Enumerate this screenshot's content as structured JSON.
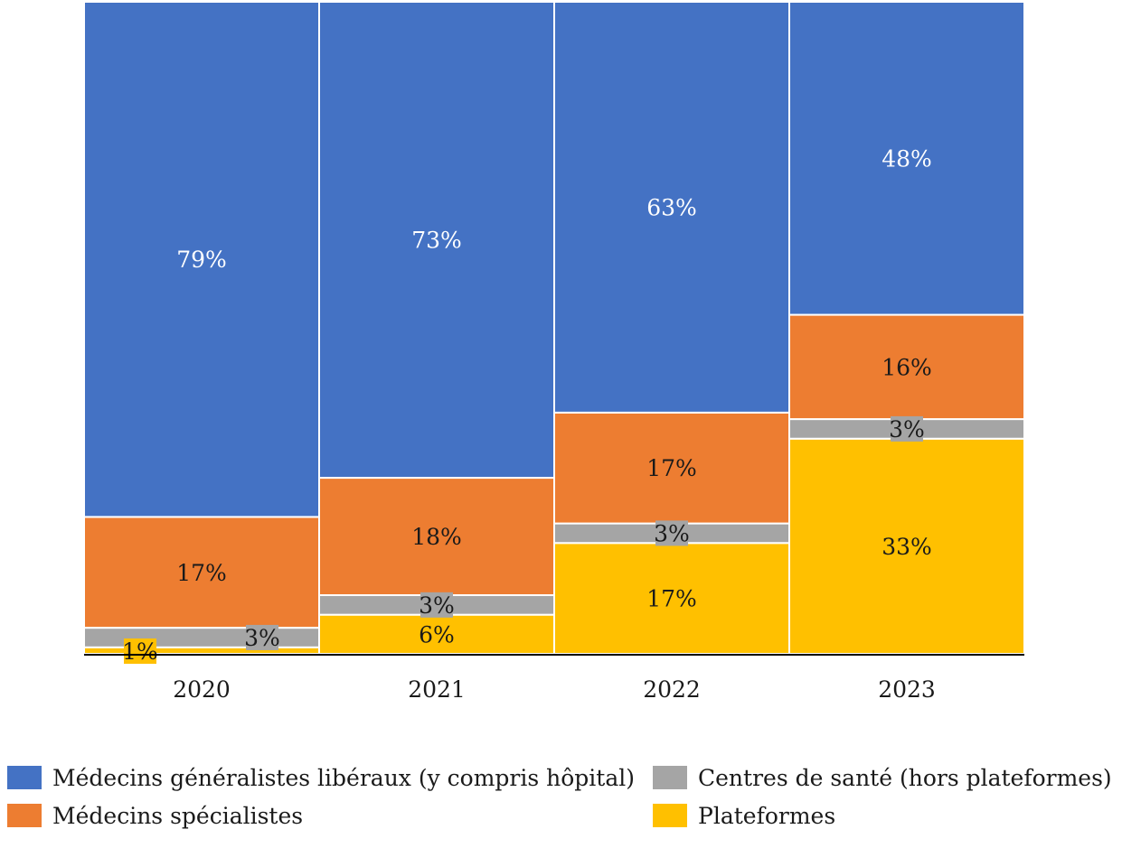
{
  "chart_data": {
    "type": "bar",
    "stacked": true,
    "categories": [
      "2020",
      "2021",
      "2022",
      "2023"
    ],
    "series": [
      {
        "name": "Plateformes",
        "color": "#FFC000",
        "values": [
          1,
          6,
          17,
          33
        ],
        "labels": [
          "1%",
          "6%",
          "17%",
          "33%"
        ]
      },
      {
        "name": "Centres de santé (hors plateformes)",
        "color": "#A5A5A5",
        "values": [
          3,
          3,
          3,
          3
        ],
        "labels": [
          "3%",
          "3%",
          "3%",
          "3%"
        ]
      },
      {
        "name": "Médecins spécialistes",
        "color": "#ED7D31",
        "values": [
          17,
          18,
          17,
          16
        ],
        "labels": [
          "17%",
          "18%",
          "17%",
          "16%"
        ]
      },
      {
        "name": "Médecins généralistes libéraux (y compris hôpital)",
        "color": "#4472C4",
        "values": [
          79,
          73,
          63,
          48
        ],
        "labels": [
          "79%",
          "73%",
          "63%",
          "48%"
        ]
      }
    ],
    "ylim": [
      0,
      100
    ],
    "grid": false,
    "legend_position": "bottom",
    "title": "",
    "xlabel": "",
    "ylabel": ""
  },
  "legend": {
    "items": [
      {
        "label": "Médecins généralistes libéraux (y compris hôpital)",
        "color": "#4472C4"
      },
      {
        "label": "Centres de santé (hors plateformes)",
        "color": "#A5A5A5"
      },
      {
        "label": "Médecins spécialistes",
        "color": "#ED7D31"
      },
      {
        "label": "Plateformes",
        "color": "#FFC000"
      }
    ]
  }
}
